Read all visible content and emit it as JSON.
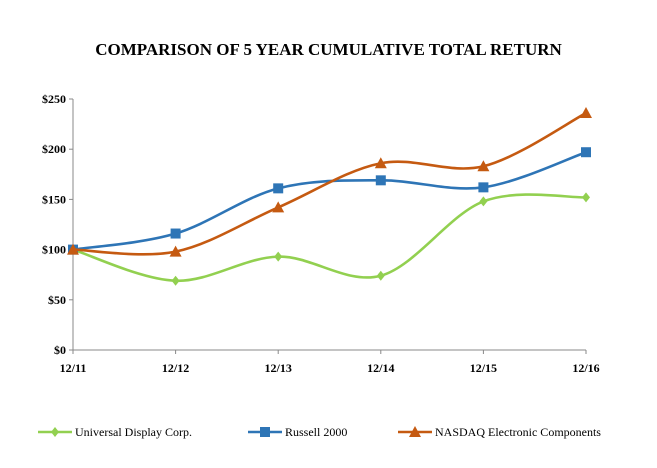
{
  "chart_data": {
    "type": "line",
    "title": "COMPARISON OF 5 YEAR CUMULATIVE TOTAL RETURN",
    "xlabel": "",
    "ylabel": "",
    "categories": [
      "12/11",
      "12/12",
      "12/13",
      "12/14",
      "12/15",
      "12/16"
    ],
    "ylim": [
      0,
      250
    ],
    "yticks": [
      "$0",
      "$50",
      "$100",
      "$150",
      "$200",
      "$250"
    ],
    "ytick_values": [
      0,
      50,
      100,
      150,
      200,
      250
    ],
    "grid": false,
    "legend_position": "bottom",
    "smooth": true,
    "series": [
      {
        "name": "Universal Display Corp.",
        "color": "#92D050",
        "marker": "diamond",
        "values": [
          100,
          69,
          93,
          74,
          148,
          152
        ]
      },
      {
        "name": "Russell 2000",
        "color": "#2E75B6",
        "marker": "square",
        "values": [
          100,
          116,
          161,
          169,
          162,
          197
        ]
      },
      {
        "name": "NASDAQ Electronic Components",
        "color": "#C55A11",
        "marker": "triangle",
        "values": [
          100,
          98,
          142,
          186,
          183,
          236
        ]
      }
    ]
  }
}
